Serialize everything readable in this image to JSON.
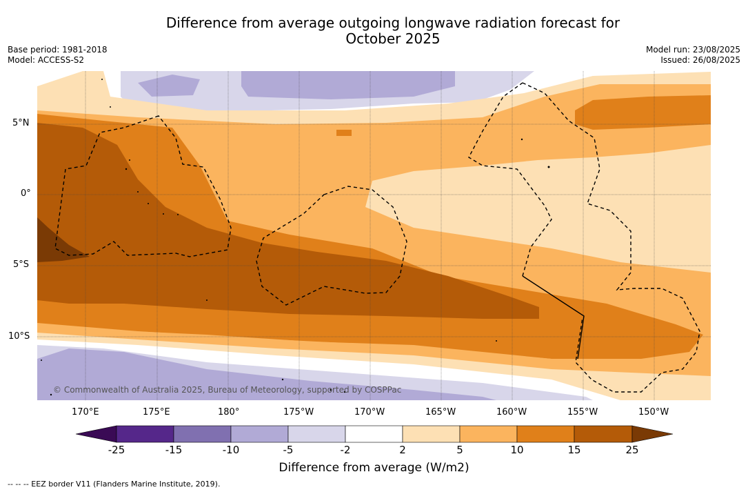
{
  "header": {
    "title_line1": "Difference from average outgoing longwave radiation forecast for",
    "title_line2": "October 2025",
    "base_period": "Base period: 1981-2018",
    "model": "Model: ACCESS-S2",
    "model_run": "Model run: 23/08/2025",
    "issued": "Issued: 26/08/2025"
  },
  "map": {
    "lat_labels": [
      "5°N",
      "0°",
      "5°S",
      "10°S"
    ],
    "lon_labels": [
      "170°E",
      "175°E",
      "180°",
      "175°W",
      "170°W",
      "165°W",
      "160°W",
      "155°W",
      "150°W"
    ],
    "copyright": "© Commonwealth of Australia 2025, Bureau of Meteorology, supported by COSPPac",
    "line_color": "#000000"
  },
  "colorbar": {
    "title": "Difference from average (W/m2)",
    "labels": [
      "-25",
      "-15",
      "-10",
      "-5",
      "-2",
      "2",
      "5",
      "10",
      "15",
      "25"
    ],
    "colors": {
      "lt25": "#3a0a55",
      "n25_15": "#55278a",
      "n15_10": "#8070b0",
      "n10_5": "#b1aad6",
      "n5_2": "#d8d6ea",
      "n2_2": "#ffffff",
      "p2_5": "#fde0b4",
      "p5_10": "#fbb45e",
      "p10_15": "#e0801a",
      "p15_25": "#b45b08",
      "gt25": "#7a3a05"
    }
  },
  "footnote": "-- -- -- EEZ border V11 (Flanders Marine Institute, 2019)."
}
